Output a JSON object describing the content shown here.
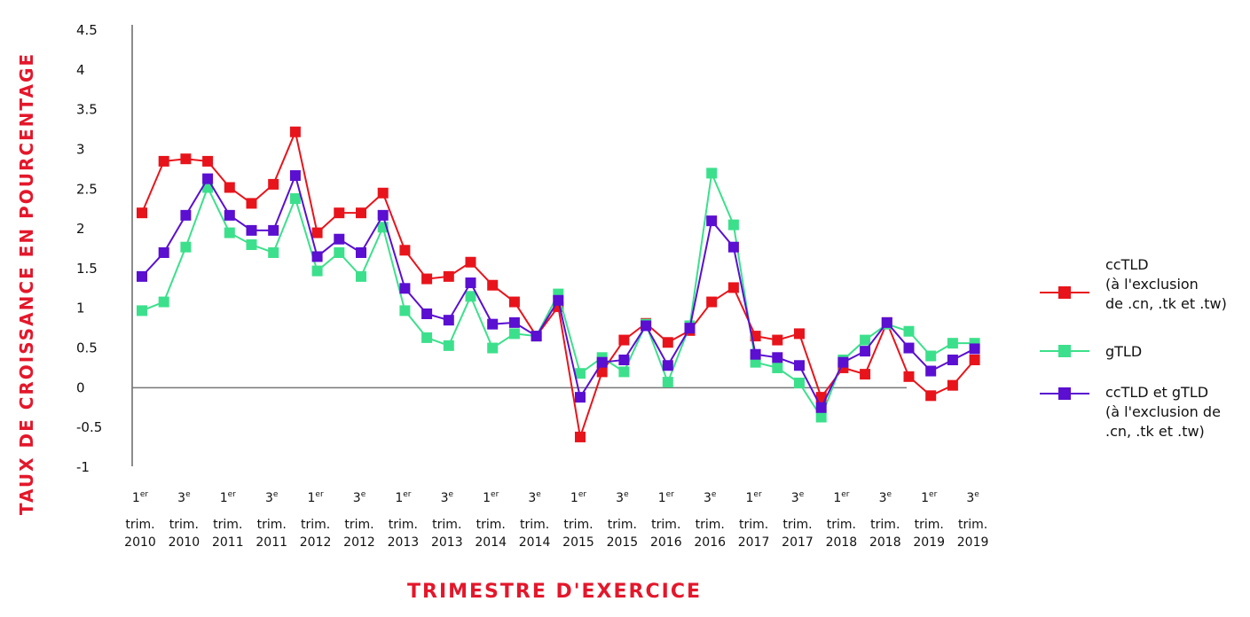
{
  "chart_data": {
    "type": "line",
    "ylabel": "TAUX DE CROISSANCE EN POURCENTAGE",
    "xlabel": "TRIMESTRE D'EXERCICE",
    "ylim": [
      -1,
      4.5
    ],
    "yticks": [
      "4.5",
      "4",
      "3.5",
      "3",
      "2.5",
      "2",
      "1.5",
      "1",
      "0.5",
      "0",
      "-0.5",
      "-1"
    ],
    "x_tick_labels": [
      {
        "num": "1",
        "sup": "er",
        "l2": "trim.",
        "l3": "2010"
      },
      {
        "num": "3",
        "sup": "e",
        "l2": "trim.",
        "l3": "2010"
      },
      {
        "num": "1",
        "sup": "er",
        "l2": "trim.",
        "l3": "2011"
      },
      {
        "num": "3",
        "sup": "e",
        "l2": "trim.",
        "l3": "2011"
      },
      {
        "num": "1",
        "sup": "er",
        "l2": "trim.",
        "l3": "2012"
      },
      {
        "num": "3",
        "sup": "e",
        "l2": "trim.",
        "l3": "2012"
      },
      {
        "num": "1",
        "sup": "er",
        "l2": "trim.",
        "l3": "2013"
      },
      {
        "num": "3",
        "sup": "e",
        "l2": "trim.",
        "l3": "2013"
      },
      {
        "num": "1",
        "sup": "er",
        "l2": "trim.",
        "l3": "2014"
      },
      {
        "num": "3",
        "sup": "e",
        "l2": "trim.",
        "l3": "2014"
      },
      {
        "num": "1",
        "sup": "er",
        "l2": "trim.",
        "l3": "2015"
      },
      {
        "num": "3",
        "sup": "e",
        "l2": "trim.",
        "l3": "2015"
      },
      {
        "num": "1",
        "sup": "er",
        "l2": "trim.",
        "l3": "2016"
      },
      {
        "num": "3",
        "sup": "e",
        "l2": "trim.",
        "l3": "2016"
      },
      {
        "num": "1",
        "sup": "er",
        "l2": "trim.",
        "l3": "2017"
      },
      {
        "num": "3",
        "sup": "e",
        "l2": "trim.",
        "l3": "2017"
      },
      {
        "num": "1",
        "sup": "er",
        "l2": "trim.",
        "l3": "2018"
      },
      {
        "num": "3",
        "sup": "e",
        "l2": "trim.",
        "l3": "2018"
      },
      {
        "num": "1",
        "sup": "er",
        "l2": "trim.",
        "l3": "2019"
      },
      {
        "num": "3",
        "sup": "e",
        "l2": "trim.",
        "l3": "2019"
      }
    ],
    "x_label_positions": [
      0,
      2,
      4,
      6,
      8,
      10,
      12,
      14,
      16,
      18,
      20,
      22,
      24,
      26,
      28,
      30,
      32,
      34,
      36,
      38
    ],
    "grid": false,
    "legend_position": "right",
    "series": [
      {
        "name": "ccTLD\n(à l'exclusion\nde .cn, .tk et .tw)",
        "color": "#e8141b",
        "values": [
          2.2,
          2.85,
          2.88,
          2.85,
          2.52,
          2.32,
          2.56,
          3.22,
          1.95,
          2.2,
          2.2,
          2.45,
          1.73,
          1.37,
          1.4,
          1.58,
          1.29,
          1.08,
          0.65,
          1.02,
          -0.62,
          0.2,
          0.6,
          0.81,
          0.57,
          0.72,
          1.08,
          1.26,
          0.65,
          0.6,
          0.68,
          -0.12,
          0.25,
          0.17,
          0.82,
          0.14,
          -0.1,
          0.03,
          0.35,
          null
        ]
      },
      {
        "name": "gTLD",
        "color": "#3ce08c",
        "values": [
          0.97,
          1.08,
          1.77,
          2.52,
          1.95,
          1.8,
          1.7,
          2.38,
          1.47,
          1.7,
          1.4,
          2.02,
          0.97,
          0.63,
          0.53,
          1.15,
          0.5,
          0.68,
          0.65,
          1.18,
          0.18,
          0.38,
          0.2,
          0.8,
          0.07,
          0.78,
          2.7,
          2.05,
          0.32,
          0.25,
          0.06,
          -0.37,
          0.35,
          0.6,
          0.8,
          0.71,
          0.4,
          0.56,
          0.56,
          null
        ]
      },
      {
        "name": "ccTLD et gTLD\n(à l'exclusion de\n.cn, .tk et .tw)",
        "color": "#5a0fd1",
        "values": [
          1.4,
          1.7,
          2.17,
          2.63,
          2.17,
          1.98,
          1.98,
          2.67,
          1.65,
          1.87,
          1.7,
          2.17,
          1.25,
          0.93,
          0.85,
          1.32,
          0.8,
          0.82,
          0.65,
          1.1,
          -0.12,
          0.32,
          0.35,
          0.78,
          0.28,
          0.75,
          2.1,
          1.77,
          0.42,
          0.38,
          0.28,
          -0.25,
          0.32,
          0.46,
          0.82,
          0.5,
          0.21,
          0.35,
          0.49,
          null
        ]
      }
    ]
  }
}
